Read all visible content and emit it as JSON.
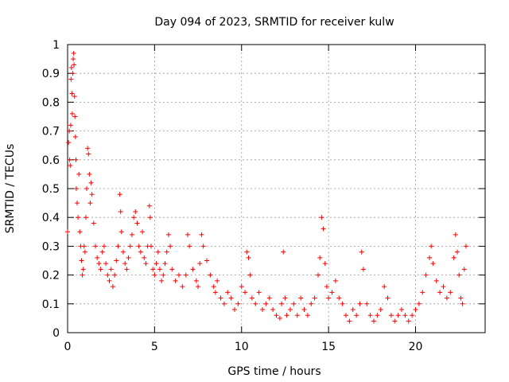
{
  "chart_data": {
    "type": "scatter",
    "title": "Day 094 of 2023, SRMTID for receiver kulw",
    "xlabel": "GPS time / hours",
    "ylabel": "SRMTID / TECUs",
    "xlim": [
      0,
      24
    ],
    "ylim": [
      0,
      1
    ],
    "xticks": [
      0,
      5,
      10,
      15,
      20
    ],
    "xtick_labels": [
      "0",
      "5",
      "10",
      "15",
      "20"
    ],
    "yticks": [
      0,
      0.1,
      0.2,
      0.3,
      0.4,
      0.5,
      0.6,
      0.7,
      0.8,
      0.9,
      1
    ],
    "ytick_labels": [
      "0",
      "0.1",
      "0.2",
      "0.3",
      "0.4",
      "0.5",
      "0.6",
      "0.7",
      "0.8",
      "0.9",
      "1"
    ],
    "grid": true,
    "marker": "+",
    "color": "#ff0000",
    "series": [
      {
        "name": "SRMTID",
        "points": [
          [
            0.0,
            0.35
          ],
          [
            0.05,
            0.66
          ],
          [
            0.1,
            0.7
          ],
          [
            0.12,
            0.6
          ],
          [
            0.15,
            0.58
          ],
          [
            0.18,
            0.72
          ],
          [
            0.2,
            0.88
          ],
          [
            0.22,
            0.92
          ],
          [
            0.25,
            0.83
          ],
          [
            0.27,
            0.76
          ],
          [
            0.3,
            0.9
          ],
          [
            0.32,
            0.95
          ],
          [
            0.35,
            0.97
          ],
          [
            0.37,
            0.93
          ],
          [
            0.4,
            0.82
          ],
          [
            0.42,
            0.75
          ],
          [
            0.45,
            0.68
          ],
          [
            0.48,
            0.6
          ],
          [
            0.5,
            0.5
          ],
          [
            0.55,
            0.45
          ],
          [
            0.6,
            0.4
          ],
          [
            0.65,
            0.55
          ],
          [
            0.7,
            0.35
          ],
          [
            0.75,
            0.3
          ],
          [
            0.8,
            0.25
          ],
          [
            0.85,
            0.2
          ],
          [
            0.9,
            0.22
          ],
          [
            0.95,
            0.3
          ],
          [
            1.0,
            0.28
          ],
          [
            1.05,
            0.4
          ],
          [
            1.1,
            0.5
          ],
          [
            1.15,
            0.64
          ],
          [
            1.2,
            0.62
          ],
          [
            1.25,
            0.55
          ],
          [
            1.3,
            0.45
          ],
          [
            1.35,
            0.52
          ],
          [
            1.4,
            0.48
          ],
          [
            1.5,
            0.38
          ],
          [
            1.6,
            0.3
          ],
          [
            1.7,
            0.26
          ],
          [
            1.8,
            0.24
          ],
          [
            1.9,
            0.22
          ],
          [
            2.0,
            0.28
          ],
          [
            2.1,
            0.3
          ],
          [
            2.2,
            0.24
          ],
          [
            2.3,
            0.2
          ],
          [
            2.4,
            0.18
          ],
          [
            2.5,
            0.22
          ],
          [
            2.6,
            0.16
          ],
          [
            2.7,
            0.2
          ],
          [
            2.8,
            0.25
          ],
          [
            2.9,
            0.3
          ],
          [
            3.0,
            0.48
          ],
          [
            3.05,
            0.42
          ],
          [
            3.1,
            0.35
          ],
          [
            3.2,
            0.28
          ],
          [
            3.3,
            0.24
          ],
          [
            3.4,
            0.22
          ],
          [
            3.5,
            0.26
          ],
          [
            3.6,
            0.3
          ],
          [
            3.7,
            0.34
          ],
          [
            3.8,
            0.4
          ],
          [
            3.9,
            0.42
          ],
          [
            4.0,
            0.38
          ],
          [
            4.1,
            0.3
          ],
          [
            4.2,
            0.28
          ],
          [
            4.3,
            0.35
          ],
          [
            4.4,
            0.26
          ],
          [
            4.5,
            0.24
          ],
          [
            4.6,
            0.3
          ],
          [
            4.7,
            0.44
          ],
          [
            4.75,
            0.4
          ],
          [
            4.8,
            0.3
          ],
          [
            4.9,
            0.22
          ],
          [
            5.0,
            0.2
          ],
          [
            5.1,
            0.24
          ],
          [
            5.2,
            0.28
          ],
          [
            5.3,
            0.22
          ],
          [
            5.4,
            0.18
          ],
          [
            5.5,
            0.2
          ],
          [
            5.6,
            0.24
          ],
          [
            5.7,
            0.28
          ],
          [
            5.8,
            0.34
          ],
          [
            5.9,
            0.3
          ],
          [
            6.0,
            0.22
          ],
          [
            6.2,
            0.18
          ],
          [
            6.4,
            0.2
          ],
          [
            6.6,
            0.16
          ],
          [
            6.8,
            0.2
          ],
          [
            6.9,
            0.34
          ],
          [
            7.0,
            0.3
          ],
          [
            7.2,
            0.22
          ],
          [
            7.4,
            0.18
          ],
          [
            7.5,
            0.16
          ],
          [
            7.6,
            0.24
          ],
          [
            7.7,
            0.34
          ],
          [
            7.8,
            0.3
          ],
          [
            8.0,
            0.25
          ],
          [
            8.2,
            0.2
          ],
          [
            8.4,
            0.16
          ],
          [
            8.5,
            0.14
          ],
          [
            8.6,
            0.18
          ],
          [
            8.8,
            0.12
          ],
          [
            9.0,
            0.1
          ],
          [
            9.2,
            0.14
          ],
          [
            9.4,
            0.12
          ],
          [
            9.6,
            0.08
          ],
          [
            9.8,
            0.1
          ],
          [
            10.0,
            0.16
          ],
          [
            10.2,
            0.14
          ],
          [
            10.3,
            0.28
          ],
          [
            10.4,
            0.26
          ],
          [
            10.5,
            0.2
          ],
          [
            10.6,
            0.12
          ],
          [
            10.8,
            0.1
          ],
          [
            11.0,
            0.14
          ],
          [
            11.2,
            0.08
          ],
          [
            11.4,
            0.1
          ],
          [
            11.6,
            0.12
          ],
          [
            11.8,
            0.08
          ],
          [
            12.0,
            0.06
          ],
          [
            12.2,
            0.05
          ],
          [
            12.3,
            0.1
          ],
          [
            12.4,
            0.28
          ],
          [
            12.5,
            0.12
          ],
          [
            12.6,
            0.06
          ],
          [
            12.8,
            0.08
          ],
          [
            13.0,
            0.1
          ],
          [
            13.2,
            0.06
          ],
          [
            13.4,
            0.12
          ],
          [
            13.6,
            0.08
          ],
          [
            13.8,
            0.06
          ],
          [
            14.0,
            0.1
          ],
          [
            14.2,
            0.12
          ],
          [
            14.4,
            0.2
          ],
          [
            14.5,
            0.26
          ],
          [
            14.6,
            0.4
          ],
          [
            14.7,
            0.36
          ],
          [
            14.8,
            0.24
          ],
          [
            14.9,
            0.16
          ],
          [
            15.0,
            0.12
          ],
          [
            15.2,
            0.14
          ],
          [
            15.4,
            0.18
          ],
          [
            15.6,
            0.12
          ],
          [
            15.8,
            0.1
          ],
          [
            16.0,
            0.06
          ],
          [
            16.2,
            0.04
          ],
          [
            16.4,
            0.08
          ],
          [
            16.6,
            0.06
          ],
          [
            16.8,
            0.1
          ],
          [
            16.9,
            0.28
          ],
          [
            17.0,
            0.22
          ],
          [
            17.2,
            0.1
          ],
          [
            17.4,
            0.06
          ],
          [
            17.6,
            0.04
          ],
          [
            17.8,
            0.06
          ],
          [
            18.0,
            0.08
          ],
          [
            18.2,
            0.16
          ],
          [
            18.4,
            0.12
          ],
          [
            18.6,
            0.06
          ],
          [
            18.8,
            0.04
          ],
          [
            19.0,
            0.06
          ],
          [
            19.2,
            0.08
          ],
          [
            19.4,
            0.06
          ],
          [
            19.6,
            0.04
          ],
          [
            19.8,
            0.06
          ],
          [
            20.0,
            0.08
          ],
          [
            20.2,
            0.1
          ],
          [
            20.4,
            0.14
          ],
          [
            20.6,
            0.2
          ],
          [
            20.8,
            0.26
          ],
          [
            20.9,
            0.3
          ],
          [
            21.0,
            0.24
          ],
          [
            21.2,
            0.18
          ],
          [
            21.4,
            0.14
          ],
          [
            21.6,
            0.16
          ],
          [
            21.8,
            0.12
          ],
          [
            22.0,
            0.14
          ],
          [
            22.2,
            0.26
          ],
          [
            22.3,
            0.34
          ],
          [
            22.4,
            0.28
          ],
          [
            22.5,
            0.2
          ],
          [
            22.6,
            0.12
          ],
          [
            22.7,
            0.1
          ],
          [
            22.8,
            0.22
          ],
          [
            22.9,
            0.3
          ]
        ]
      }
    ]
  }
}
